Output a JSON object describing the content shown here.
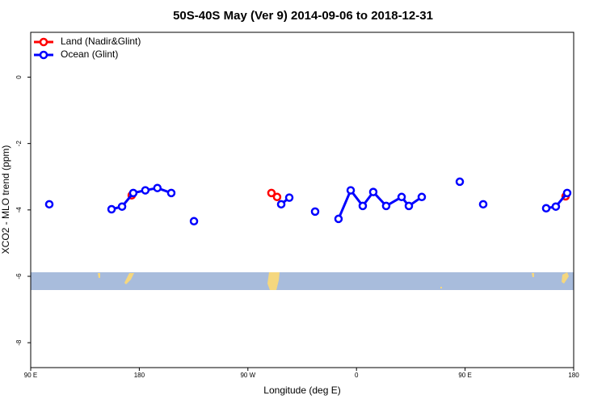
{
  "chart_data": {
    "type": "line",
    "title": "50S-40S May (Ver 9)   2014-09-06 to 2018-12-31",
    "x_label": "Longitude (deg E)",
    "y_label": "XCO2 - MLO trend (ppm)",
    "xlim": [
      90,
      540
    ],
    "xticks": [
      {
        "value": 90,
        "label": "90 E"
      },
      180,
      {
        "value": 270,
        "label": "90 W"
      },
      {
        "value": 360,
        "label": "0"
      },
      {
        "value": 450,
        "label": "90 E"
      },
      {
        "value": 540,
        "label": "180"
      }
    ],
    "ylim": [
      -8.75,
      1.35
    ],
    "yticks": [
      0,
      -2,
      -4,
      -6,
      -8
    ],
    "legend": "top-left",
    "series": [
      {
        "name": "Land (Nadir&Glint)",
        "color": "#ff0000",
        "x": [
          173.7,
          null,
          289.5,
          294.2,
          null,
          533.3
        ],
        "values": [
          -3.56,
          null,
          -3.49,
          -3.61,
          null,
          -3.59
        ]
      },
      {
        "name": "Ocean (Glint)",
        "color": "#0000ff",
        "x": [
          105.4,
          null,
          157,
          165.7,
          175,
          185,
          195,
          206.5,
          null,
          225.3,
          null,
          297.6,
          304.3,
          null,
          325.7,
          null,
          345.1,
          355.2,
          365.2,
          373.9,
          384.6,
          397.4,
          403.4,
          414.1,
          null,
          445.6,
          null,
          465,
          null,
          517.2,
          525.2,
          534.6
        ],
        "values": [
          -3.83,
          null,
          -3.98,
          -3.9,
          -3.49,
          -3.41,
          -3.34,
          -3.49,
          null,
          -4.34,
          null,
          -3.83,
          -3.63,
          null,
          -4.05,
          null,
          -4.27,
          -3.41,
          -3.88,
          -3.46,
          -3.88,
          -3.61,
          -3.88,
          -3.61,
          null,
          -3.15,
          null,
          -3.83,
          null,
          -3.95,
          -3.9,
          -3.49
        ]
      }
    ]
  }
}
